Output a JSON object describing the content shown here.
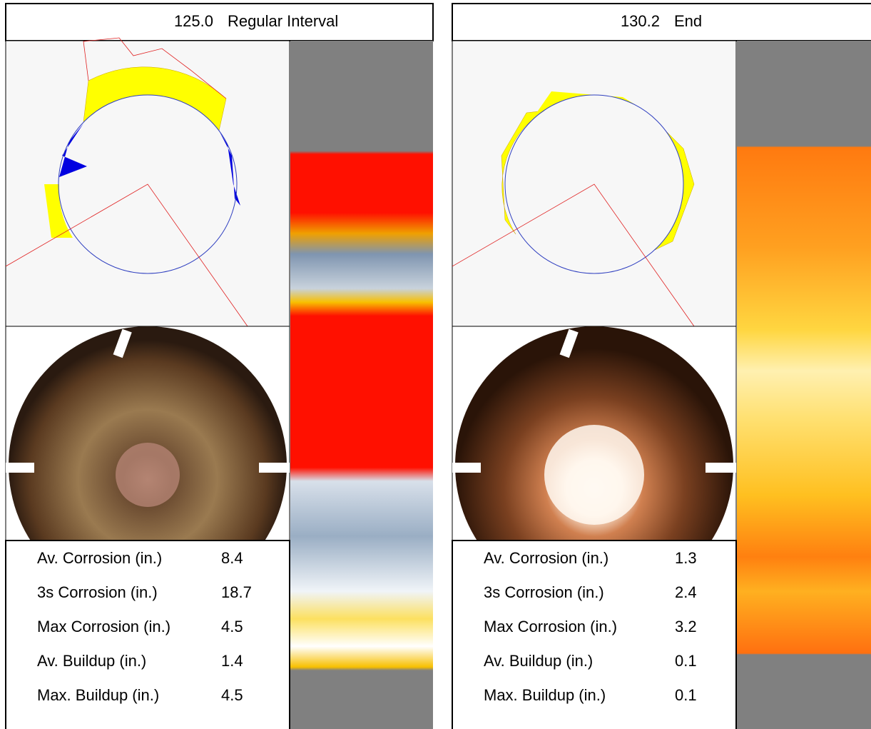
{
  "panels": [
    {
      "position": "125.0",
      "label": "Regular Interval",
      "stats": [
        {
          "label": "Av. Corrosion (in.)",
          "value": "8.4"
        },
        {
          "label": "3s Corrosion (in.)",
          "value": "18.7"
        },
        {
          "label": "Max Corrosion (in.)",
          "value": "4.5"
        },
        {
          "label": "Av. Buildup (in.)",
          "value": "1.4"
        },
        {
          "label": "Max. Buildup (in.)",
          "value": "4.5"
        }
      ]
    },
    {
      "position": "130.2",
      "label": "End",
      "stats": [
        {
          "label": "Av. Corrosion (in.)",
          "value": "1.3"
        },
        {
          "label": "3s Corrosion (in.)",
          "value": "2.4"
        },
        {
          "label": "Max Corrosion (in.)",
          "value": "3.2"
        },
        {
          "label": "Av. Buildup (in.)",
          "value": "0.1"
        },
        {
          "label": "Max. Buildup (in.)",
          "value": "0.1"
        }
      ]
    }
  ]
}
